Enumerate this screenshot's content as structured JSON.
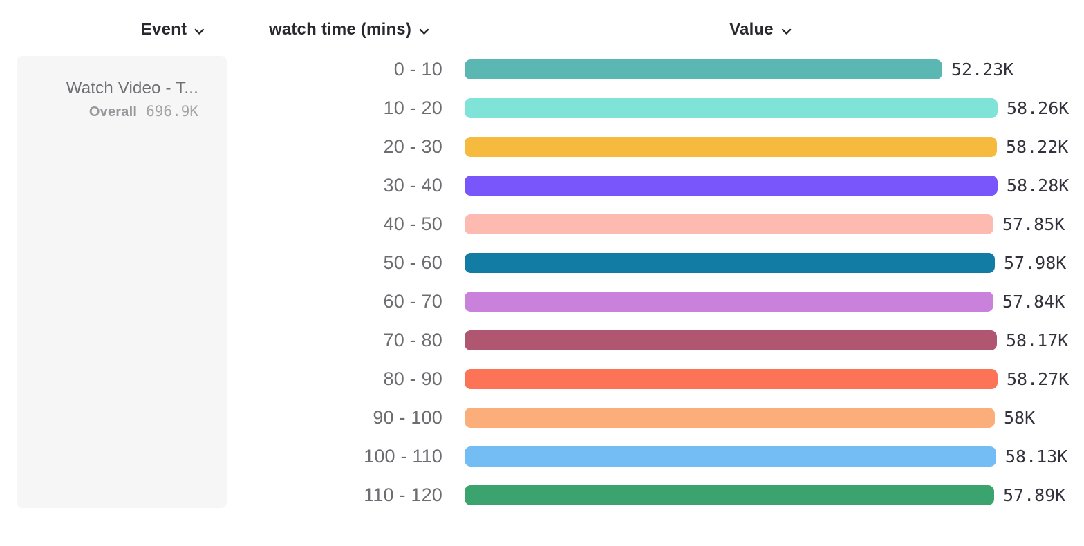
{
  "header": {
    "columns": [
      {
        "id": "event",
        "label": "Event",
        "icon": "chevron-down-icon"
      },
      {
        "id": "breakdown",
        "label": "watch time (mins)",
        "icon": "chevron-down-icon"
      },
      {
        "id": "value",
        "label": "Value",
        "icon": "chevron-down-icon"
      }
    ]
  },
  "event_panel": {
    "title": "Watch Video - T...",
    "overall_label": "Overall",
    "overall_value": "696.9K"
  },
  "colors": {
    "header_text": "#28282f",
    "bucket_label_text": "#6c6c71",
    "value_text": "#32323c",
    "card_background": "#f6f6f6"
  },
  "chart_data": {
    "type": "bar",
    "orientation": "horizontal",
    "title": "",
    "xlabel": "Value",
    "ylabel": "watch time (mins)",
    "legend": "none",
    "grid": false,
    "xlim": [
      0,
      58280
    ],
    "categories": [
      "0 - 10",
      "10 - 20",
      "20 - 30",
      "30 - 40",
      "40 - 50",
      "50 - 60",
      "60 - 70",
      "70 - 80",
      "80 - 90",
      "90 - 100",
      "100 - 110",
      "110 - 120"
    ],
    "values": [
      52230,
      58260,
      58220,
      58280,
      57850,
      57980,
      57840,
      58170,
      58270,
      58000,
      58130,
      57890
    ],
    "value_labels": [
      "52.23K",
      "58.26K",
      "58.22K",
      "58.28K",
      "57.85K",
      "57.98K",
      "57.84K",
      "58.17K",
      "58.27K",
      "58K",
      "58.13K",
      "57.89K"
    ],
    "bar_colors": [
      "#5bb7b1",
      "#7fe3d8",
      "#f6bb3e",
      "#7856fb",
      "#fcbab1",
      "#127ca5",
      "#c981dc",
      "#b05670",
      "#fc7357",
      "#fbae79",
      "#74bcf4",
      "#3ba46e"
    ]
  }
}
